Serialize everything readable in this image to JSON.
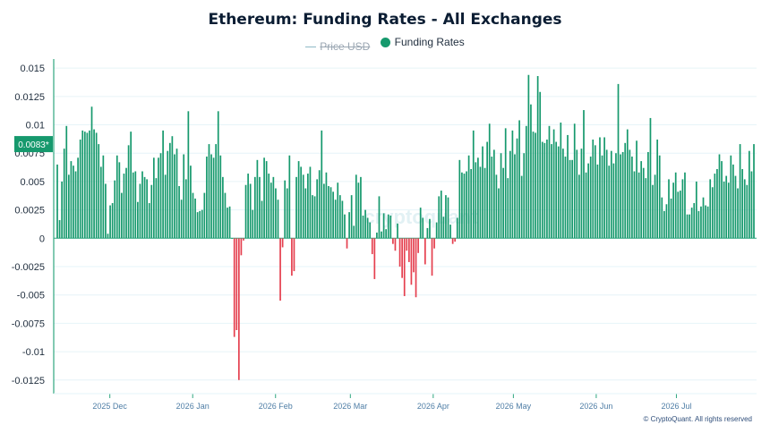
{
  "title": "Ethereum: Funding Rates - All Exchanges",
  "legend": {
    "price": {
      "label": "Price USD",
      "color": "#8fb9c6",
      "enabled": false
    },
    "funding": {
      "label": "Funding Rates",
      "color": "#16996d",
      "enabled": true
    }
  },
  "current_value_label": "0.0083*",
  "watermark": "cryptoquant",
  "copyright": "© CryptoQuant. All rights reserved",
  "colors": {
    "positive": "#16996d",
    "negative": "#e5404f",
    "axis": "#2fa77f",
    "grid": "#e6f4f8",
    "tick_text": "#1f2d3d",
    "x_tick_text": "#4f7ea6",
    "badge": "#16996d"
  },
  "chart_data": {
    "type": "bar",
    "title": "Ethereum: Funding Rates - All Exchanges",
    "xlabel": "",
    "ylabel": "",
    "x_start": "2025-11-10",
    "x_end": "2026-07-31",
    "ylim": [
      -0.0137,
      0.0158
    ],
    "y_ticks": [
      0.015,
      0.0125,
      0.01,
      0.0075,
      0.005,
      0.0025,
      0,
      -0.0025,
      -0.005,
      -0.0075,
      -0.01,
      -0.0125
    ],
    "y_tick_labels": [
      "0.015",
      "0.0125",
      "0.01",
      "0.0075",
      "0.005",
      "0.0025",
      "0",
      "-0.0025",
      "-0.005",
      "-0.0075",
      "-0.01",
      "-0.0125"
    ],
    "x_ticks": [
      {
        "date": "2025-12-01",
        "label": "2025 Dec"
      },
      {
        "date": "2026-01-01",
        "label": "2026 Jan"
      },
      {
        "date": "2026-02-01",
        "label": "2026 Feb"
      },
      {
        "date": "2026-03-01",
        "label": "2026 Mar"
      },
      {
        "date": "2026-04-01",
        "label": "2026 Apr"
      },
      {
        "date": "2026-05-01",
        "label": "2026 May"
      },
      {
        "date": "2026-06-01",
        "label": "2026 Jun"
      },
      {
        "date": "2026-07-01",
        "label": "2026 Jul"
      }
    ],
    "grid": true,
    "legend_position": "top-center",
    "series": [
      {
        "name": "Funding Rates",
        "values": [
          0.0065,
          0.0016,
          0.005,
          0.0079,
          0.0099,
          0.0056,
          0.0068,
          0.0064,
          0.0059,
          0.0071,
          0.0087,
          0.0095,
          0.0094,
          0.0093,
          0.0095,
          0.0116,
          0.0096,
          0.0093,
          0.0083,
          0.0063,
          0.0073,
          0.0048,
          0.0004,
          0.0029,
          0.0031,
          0.0051,
          0.0073,
          0.0067,
          0.004,
          0.0057,
          0.0062,
          0.0082,
          0.0094,
          0.0058,
          0.0059,
          0.0032,
          0.0048,
          0.0059,
          0.0054,
          0.0052,
          0.0031,
          0.0047,
          0.0071,
          0.0053,
          0.0071,
          0.0075,
          0.0095,
          0.0056,
          0.0077,
          0.0084,
          0.009,
          0.0074,
          0.0079,
          0.0046,
          0.0034,
          0.0074,
          0.0052,
          0.0112,
          0.0064,
          0.004,
          0.0035,
          0.0023,
          0.0024,
          0.0025,
          0.004,
          0.0072,
          0.0083,
          0.0074,
          0.0071,
          0.0083,
          0.0112,
          0.0073,
          0.0054,
          0.004,
          0.0027,
          0.0028,
          0.0,
          -0.0087,
          -0.0081,
          -0.0125,
          -0.0015,
          -0.0002,
          0.0047,
          0.0057,
          0.0048,
          0.0025,
          0.0054,
          0.0069,
          0.0054,
          0.0033,
          0.0071,
          0.0068,
          0.0057,
          0.0049,
          0.0054,
          0.0044,
          0.0034,
          -0.0055,
          -0.0008,
          0.0051,
          0.0044,
          0.0073,
          -0.0033,
          -0.0029,
          0.0054,
          0.0068,
          0.0063,
          0.0056,
          0.0044,
          0.0057,
          0.0063,
          0.0038,
          0.0037,
          0.0052,
          0.006,
          0.0095,
          0.0048,
          0.0058,
          0.0046,
          0.0045,
          0.0041,
          0.0034,
          0.0049,
          0.0038,
          0.0033,
          0.0021,
          -0.0009,
          0.0023,
          0.0038,
          0.0011,
          0.0056,
          0.0049,
          0.0054,
          0.002,
          0.0025,
          0.0018,
          0.0014,
          -0.0014,
          -0.0036,
          0.0005,
          0.0037,
          0.0006,
          0.0022,
          0.0008,
          0.0021,
          0.002,
          -0.0005,
          -0.0011,
          0.0013,
          -0.0025,
          -0.0035,
          -0.0051,
          -0.0011,
          -0.0021,
          -0.0041,
          -0.003,
          -0.0052,
          -0.0013,
          0.0027,
          0.0018,
          -0.0023,
          0.0009,
          0.0017,
          -0.0033,
          -0.0009,
          0.0014,
          0.0037,
          0.0042,
          0.0019,
          0.0038,
          0.0036,
          0.0012,
          -0.0005,
          -0.0003,
          0.0018,
          0.0069,
          0.0058,
          0.0057,
          0.0059,
          0.0073,
          0.0061,
          0.0095,
          0.0067,
          0.0071,
          0.0063,
          0.0081,
          0.0062,
          0.0085,
          0.0101,
          0.0072,
          0.0078,
          0.0056,
          0.0044,
          0.0075,
          0.0062,
          0.0097,
          0.0053,
          0.0077,
          0.0095,
          0.0074,
          0.0088,
          0.0104,
          0.0055,
          0.0075,
          0.0099,
          0.0144,
          0.0118,
          0.0094,
          0.0093,
          0.0143,
          0.0129,
          0.0085,
          0.0084,
          0.0087,
          0.0099,
          0.0083,
          0.0096,
          0.0085,
          0.0081,
          0.0102,
          0.0079,
          0.0072,
          0.0091,
          0.0069,
          0.0069,
          0.0101,
          0.0078,
          0.0056,
          0.0079,
          0.0113,
          0.0058,
          0.0066,
          0.0072,
          0.0087,
          0.0082,
          0.0065,
          0.0089,
          0.0073,
          0.0089,
          0.0078,
          0.0064,
          0.0077,
          0.0066,
          0.0075,
          0.0136,
          0.0074,
          0.0076,
          0.0084,
          0.0096,
          0.0078,
          0.0072,
          0.0059,
          0.0086,
          0.0058,
          0.0068,
          0.0062,
          0.0053,
          0.0076,
          0.0106,
          0.0047,
          0.0056,
          0.0087,
          0.0073,
          0.0036,
          0.0024,
          0.003,
          0.0052,
          0.0035,
          0.0049,
          0.0058,
          0.0041,
          0.0042,
          0.0052,
          0.0058,
          0.0021,
          0.0021,
          0.0027,
          0.0031,
          0.005,
          0.0024,
          0.0028,
          0.0036,
          0.0029,
          0.0028,
          0.0052,
          0.0045,
          0.0057,
          0.0061,
          0.0074,
          0.0068,
          0.005,
          0.0055,
          0.0049,
          0.0073,
          0.0065,
          0.0055,
          0.0044,
          0.0083,
          0.0061,
          0.0052,
          0.0047,
          0.0077,
          0.0059,
          0.0083
        ]
      }
    ]
  }
}
